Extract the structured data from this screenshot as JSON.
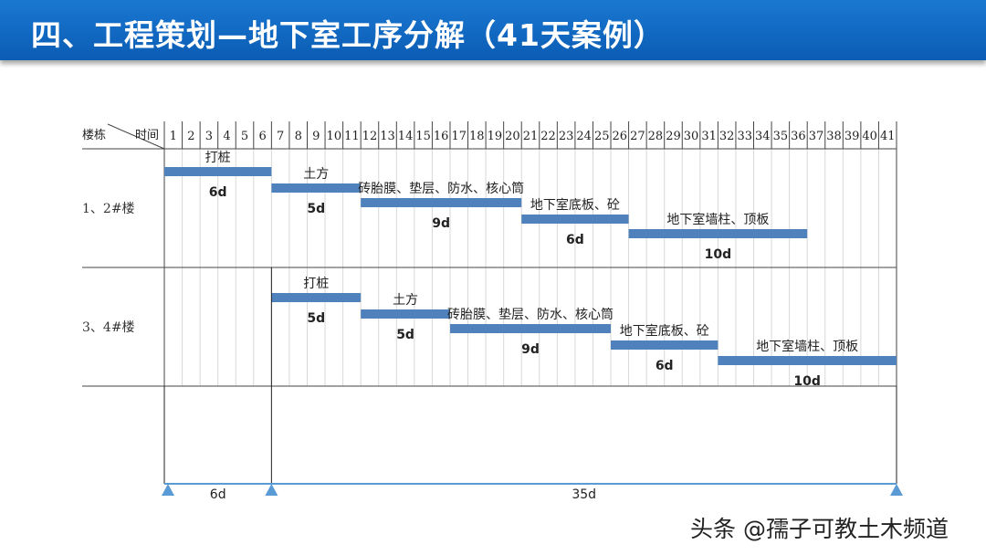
{
  "title": "四、工程策划—地下室工序分解（41天案例）",
  "chart_data": {
    "type": "gantt",
    "header": {
      "row_label": "楼栋",
      "col_label": "时间"
    },
    "days": 41,
    "rows": [
      {
        "label": "1、2#楼",
        "tasks": [
          {
            "name": "打桩",
            "start": 1,
            "duration": 6,
            "label": "6d"
          },
          {
            "name": "土方",
            "start": 7,
            "duration": 5,
            "label": "5d"
          },
          {
            "name": "砖胎膜、垫层、防水、核心筒",
            "start": 12,
            "duration": 9,
            "label": "9d"
          },
          {
            "name": "地下室底板、砼",
            "start": 21,
            "duration": 6,
            "label": "6d"
          },
          {
            "name": "地下室墙柱、顶板",
            "start": 27,
            "duration": 10,
            "label": "10d"
          }
        ]
      },
      {
        "label": "3、4#楼",
        "tasks": [
          {
            "name": "打桩",
            "start": 7,
            "duration": 5,
            "label": "5d"
          },
          {
            "name": "土方",
            "start": 12,
            "duration": 5,
            "label": "5d"
          },
          {
            "name": "砖胎膜、垫层、防水、核心筒",
            "start": 17,
            "duration": 9,
            "label": "9d"
          },
          {
            "name": "地下室底板、砼",
            "start": 26,
            "duration": 6,
            "label": "6d"
          },
          {
            "name": "地下室墙柱、顶板",
            "start": 32,
            "duration": 10,
            "label": "10d"
          }
        ]
      }
    ],
    "timeline": [
      {
        "start": 1,
        "end": 6,
        "label": "6d"
      },
      {
        "start": 7,
        "end": 41,
        "label": "35d"
      }
    ],
    "bar_color": "#4f81bd"
  },
  "watermark": "头条 @孺子可教土木频道"
}
